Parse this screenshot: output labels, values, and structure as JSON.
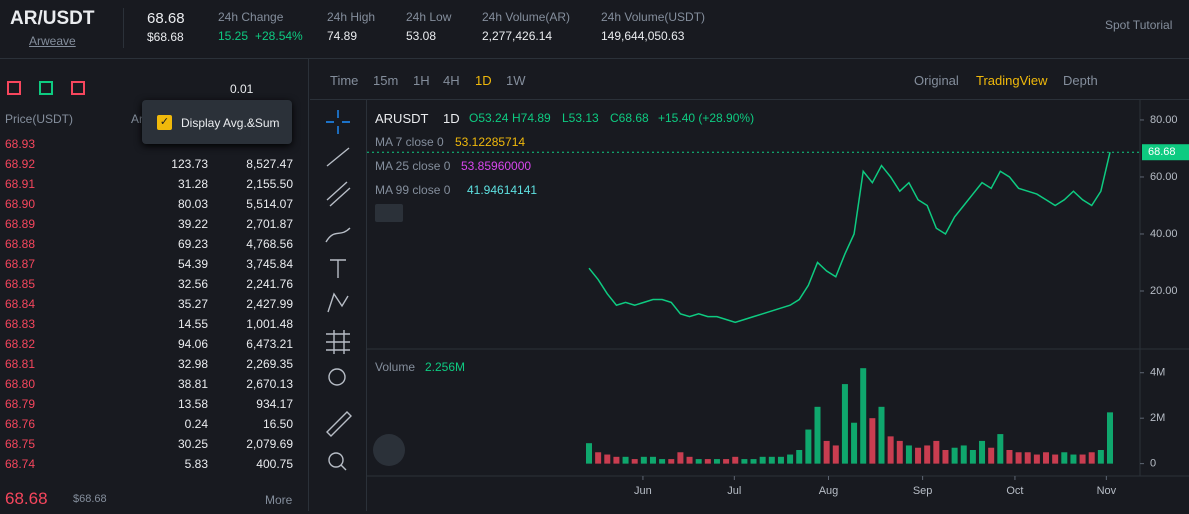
{
  "header": {
    "pair": "AR/USDT",
    "name": "Arweave",
    "price": "68.68",
    "price_usd": "$68.68",
    "stats": [
      {
        "label": "24h Change",
        "value": "15.25",
        "extra": "+28.54%"
      },
      {
        "label": "24h High",
        "value": "74.89"
      },
      {
        "label": "24h Low",
        "value": "53.08"
      },
      {
        "label": "24h Volume(AR)",
        "value": "2,277,426.14"
      },
      {
        "label": "24h Volume(USDT)",
        "value": "149,644,050.63"
      }
    ],
    "tutorial": "Spot Tutorial"
  },
  "order_book": {
    "tick": "0.01",
    "columns": [
      "Price(USDT)",
      "Ar"
    ],
    "tooltip": "Display Avg.&Sum",
    "rows": [
      [
        "68.93"
      ],
      [
        "68.92",
        "123.73",
        "8,527.47"
      ],
      [
        "68.91",
        "31.28",
        "2,155.50"
      ],
      [
        "68.90",
        "80.03",
        "5,514.07"
      ],
      [
        "68.89",
        "39.22",
        "2,701.87"
      ],
      [
        "68.88",
        "69.23",
        "4,768.56"
      ],
      [
        "68.87",
        "54.39",
        "3,745.84"
      ],
      [
        "68.85",
        "32.56",
        "2,241.76"
      ],
      [
        "68.84",
        "35.27",
        "2,427.99"
      ],
      [
        "68.83",
        "14.55",
        "1,001.48"
      ],
      [
        "68.82",
        "94.06",
        "6,473.21"
      ],
      [
        "68.81",
        "32.98",
        "2,269.35"
      ],
      [
        "68.80",
        "38.81",
        "2,670.13"
      ],
      [
        "68.79",
        "13.58",
        "934.17"
      ],
      [
        "68.76",
        "0.24",
        "16.50"
      ],
      [
        "68.75",
        "30.25",
        "2,079.69"
      ],
      [
        "68.74",
        "5.83",
        "400.75"
      ]
    ],
    "last_price": "68.68",
    "last_price_usd": "$68.68",
    "more": "More"
  },
  "toolbar": {
    "intervals": [
      "Time",
      "15m",
      "1H",
      "4H",
      "1D",
      "1W"
    ],
    "active_interval": 4,
    "views": [
      "Original",
      "TradingView",
      "Depth"
    ],
    "active_view": 1
  },
  "chart_legend": {
    "symbol": "ARUSDT",
    "interval": "1D",
    "open": "O53.24",
    "high": "H74.89",
    "low": "L53.13",
    "close": "C68.68",
    "change": "+15.40 (+28.90%)",
    "ma": [
      {
        "name": "MA 7 close 0",
        "value": "53.12285714",
        "color": "#f0b90b"
      },
      {
        "name": "MA 25 close 0",
        "value": "53.85960000",
        "color": "#d946ef"
      },
      {
        "name": "MA 99 close 0",
        "value": "41.94614141",
        "color": "#5ee0e0"
      }
    ],
    "volume_label": "Volume",
    "volume_value": "2.256M",
    "price_line_label": "68.68"
  },
  "chart_data": [
    {
      "type": "line",
      "color": "#0ecb81",
      "down_color": "#f6465d",
      "values": [
        28,
        24,
        19,
        15,
        16,
        15,
        16,
        17,
        17,
        16,
        12,
        11,
        12,
        11,
        11,
        10,
        9,
        10,
        11,
        12,
        13,
        14,
        15,
        17,
        22,
        30,
        27,
        25,
        33,
        40,
        62,
        58,
        64,
        60,
        55,
        58,
        52,
        50,
        42,
        40,
        46,
        50,
        54,
        58,
        56,
        62,
        60,
        56,
        55,
        54,
        52,
        50,
        52,
        55,
        52,
        50,
        55,
        68.68
      ],
      "xlim": [
        0,
        57
      ],
      "xticks": [
        {
          "value": 5.9,
          "label": "Jun"
        },
        {
          "value": 15.9,
          "label": "Jul"
        },
        {
          "value": 26.2,
          "label": "Aug"
        },
        {
          "value": 36.5,
          "label": "Sep"
        },
        {
          "value": 46.6,
          "label": "Oct"
        },
        {
          "value": 56.6,
          "label": "Nov"
        }
      ],
      "ylim": [
        0,
        87
      ],
      "yticks": [
        {
          "value": 20,
          "label": "20.00"
        },
        {
          "value": 40,
          "label": "40.00"
        },
        {
          "value": 60,
          "label": "60.00"
        },
        {
          "value": 80,
          "label": "80.00"
        }
      ]
    },
    {
      "type": "bar",
      "color": "#0ecb81",
      "down_color": "#f6465d",
      "values": [
        0.9,
        0.5,
        0.4,
        0.3,
        0.3,
        0.2,
        0.3,
        0.3,
        0.2,
        0.2,
        0.5,
        0.3,
        0.2,
        0.2,
        0.2,
        0.2,
        0.3,
        0.2,
        0.2,
        0.3,
        0.3,
        0.3,
        0.4,
        0.6,
        1.5,
        2.5,
        1.0,
        0.8,
        3.5,
        1.8,
        4.2,
        2.0,
        2.5,
        1.2,
        1.0,
        0.8,
        0.7,
        0.8,
        1.0,
        0.6,
        0.7,
        0.8,
        0.6,
        1.0,
        0.7,
        1.3,
        0.6,
        0.5,
        0.5,
        0.4,
        0.5,
        0.4,
        0.5,
        0.4,
        0.4,
        0.5,
        0.6,
        2.256
      ],
      "ylim": [
        -0.5,
        5
      ],
      "yticks": [
        0,
        {
          "value": 2,
          "label": "2M"
        },
        {
          "value": 4,
          "label": "4M"
        }
      ]
    }
  ]
}
